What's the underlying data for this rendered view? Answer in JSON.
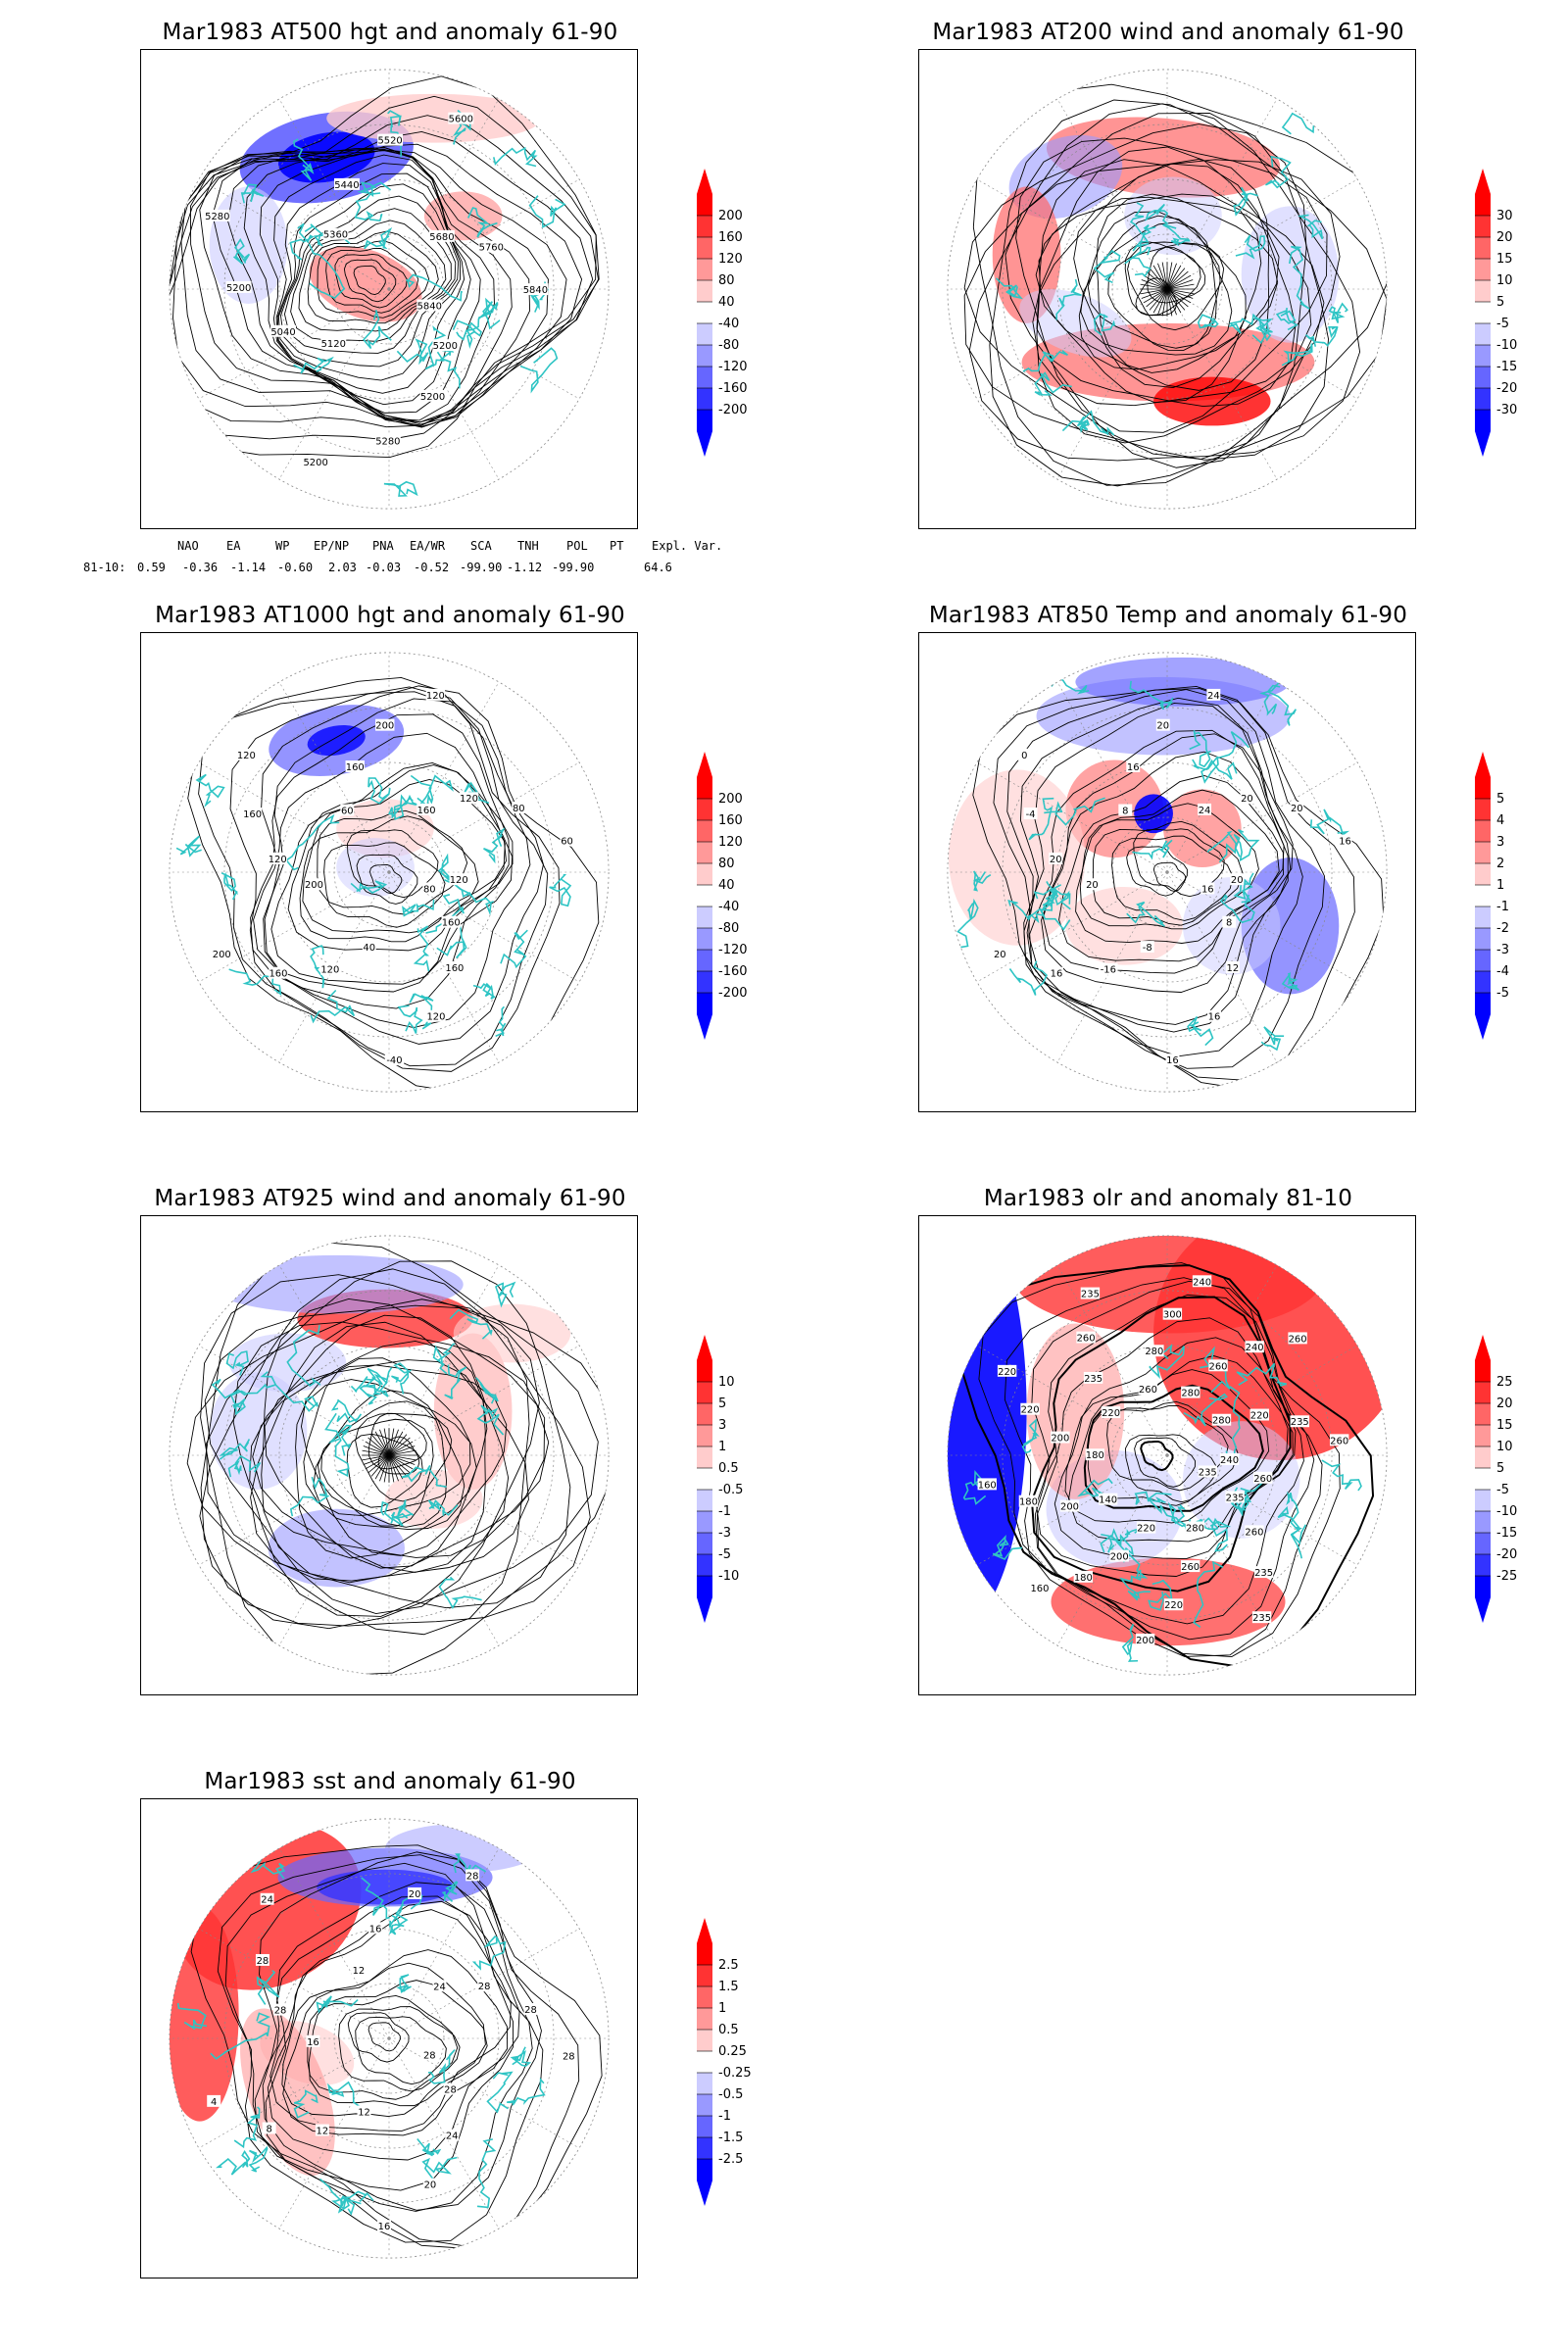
{
  "panels": [
    {
      "id": "p1",
      "title": "Mar1983 AT500 hgt and anomaly 61-90",
      "colorbar": [
        "200",
        "160",
        "120",
        "80",
        "40",
        "-40",
        "-80",
        "-120",
        "-160",
        "-200"
      ],
      "contour_labels": [
        "5840",
        "5200",
        "5200",
        "5280",
        "5200",
        "5120",
        "5040",
        "5200",
        "5280",
        "5360",
        "5440",
        "5520",
        "5600",
        "5680",
        "5760",
        "5840"
      ]
    },
    {
      "id": "p2",
      "title": "Mar1983 AT200 wind and anomaly 61-90",
      "colorbar": [
        "30",
        "20",
        "15",
        "10",
        "5",
        "-5",
        "-10",
        "-15",
        "-20",
        "-30"
      ],
      "contour_labels": []
    },
    {
      "id": "p3",
      "title": "Mar1983 AT1000 hgt and anomaly 61-90",
      "colorbar": [
        "200",
        "160",
        "120",
        "80",
        "40",
        "-40",
        "-80",
        "-120",
        "-160",
        "-200"
      ],
      "contour_labels": [
        "80",
        "160",
        "160",
        "120",
        "-40",
        "40",
        "120",
        "160",
        "200",
        "200",
        "120",
        "160",
        "120",
        "60",
        "160",
        "200",
        "120",
        "160",
        "120",
        "80",
        "60",
        "120"
      ]
    },
    {
      "id": "p4",
      "title": "Mar1983 AT850 Temp and anomaly 61-90",
      "colorbar": [
        "5",
        "4",
        "3",
        "2",
        "1",
        "-1",
        "-2",
        "-3",
        "-4",
        "-5"
      ],
      "contour_labels": [
        "16",
        "8",
        "12",
        "16",
        "16",
        "-8",
        "-16",
        "16",
        "20",
        "20",
        "20",
        "-4",
        "0",
        "8",
        "16",
        "20",
        "24",
        "24",
        "20",
        "20",
        "16",
        "20"
      ]
    },
    {
      "id": "p5",
      "title": "Mar1983 AT925 wind and anomaly 61-90",
      "colorbar": [
        "10",
        "5",
        "3",
        "1",
        "0.5",
        "-0.5",
        "-1",
        "-3",
        "-5",
        "-10"
      ],
      "contour_labels": []
    },
    {
      "id": "p6",
      "title": "Mar1983 olr and anomaly 81-10",
      "colorbar": [
        "25",
        "20",
        "15",
        "10",
        "5",
        "-5",
        "-10",
        "-15",
        "-20",
        "-25"
      ],
      "contour_labels": [
        "235",
        "235",
        "260",
        "235",
        "235",
        "280",
        "260",
        "220",
        "200",
        "220",
        "200",
        "180",
        "160",
        "140",
        "200",
        "180",
        "160",
        "180",
        "200",
        "220",
        "220",
        "220",
        "235",
        "260",
        "235",
        "260",
        "280",
        "300",
        "240",
        "280",
        "260",
        "240",
        "260",
        "280",
        "220",
        "235",
        "260",
        "240",
        "260"
      ]
    },
    {
      "id": "p7",
      "title": "Mar1983 sst and anomaly 61-90",
      "colorbar": [
        "2.5",
        "1.5",
        "1",
        "0.5",
        "0.25",
        "-0.25",
        "-0.5",
        "-1",
        "-1.5",
        "-2.5"
      ],
      "contour_labels": [
        "28",
        "28",
        "24",
        "20",
        "16",
        "12",
        "12",
        "8",
        "4",
        "16",
        "28",
        "28",
        "24",
        "12",
        "16",
        "20",
        "28",
        "24",
        "28",
        "28",
        "28"
      ]
    }
  ],
  "indices": {
    "headers": [
      "NAO",
      "EA",
      "WP",
      "EP/NP",
      "PNA",
      "EA/WR",
      "SCA",
      "TNH",
      "POL",
      "PT",
      "Expl. Var."
    ],
    "row_label": "81-10:",
    "values": [
      "0.59",
      "-0.36",
      "-1.14",
      "-0.60",
      "2.03",
      "-0.03",
      "-0.52",
      "-99.90",
      "-1.12",
      "-99.90",
      "64.6"
    ]
  },
  "colors": {
    "positive": [
      "#ff0000",
      "#ff3333",
      "#ff6666",
      "#ff9999",
      "#ffcccc"
    ],
    "negative": [
      "#ccccff",
      "#9999ff",
      "#6666ff",
      "#3333ff",
      "#0000ff"
    ],
    "coast": "#2ec4c4"
  }
}
